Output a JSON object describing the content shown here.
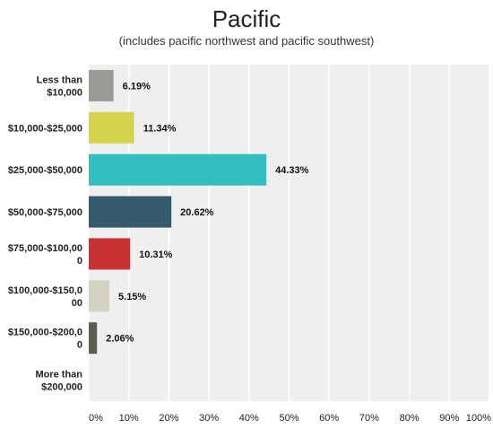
{
  "chart_data": {
    "type": "bar",
    "orientation": "horizontal",
    "title": "Pacific",
    "subtitle": "(includes pacific northwest and pacific southwest)",
    "categories": [
      [
        "Less than",
        "$10,000"
      ],
      [
        "$10,000-$25,000"
      ],
      [
        "$25,000-$50,000"
      ],
      [
        "$50,000-$75,000"
      ],
      [
        "$75,000-$100,00",
        "0"
      ],
      [
        "$100,000-$150,0",
        "00"
      ],
      [
        "$150,000-$200,0",
        "0"
      ],
      [
        "More than",
        "$200,000"
      ]
    ],
    "values": [
      6.19,
      11.34,
      44.33,
      20.62,
      10.31,
      5.15,
      2.06,
      0
    ],
    "value_labels": [
      "6.19%",
      "11.34%",
      "44.33%",
      "20.62%",
      "10.31%",
      "5.15%",
      "2.06%",
      ""
    ],
    "colors": [
      "#9b9a94",
      "#d5d54d",
      "#33bfc0",
      "#345a6b",
      "#c83232",
      "#d4d3c2",
      "#5d5d4e",
      "#bbbbbb"
    ],
    "xlim": [
      0,
      100
    ],
    "xticks": [
      "0%",
      "10%",
      "20%",
      "30%",
      "40%",
      "50%",
      "60%",
      "70%",
      "80%",
      "90%",
      "100%"
    ],
    "grid": true,
    "background": "#efefef"
  }
}
